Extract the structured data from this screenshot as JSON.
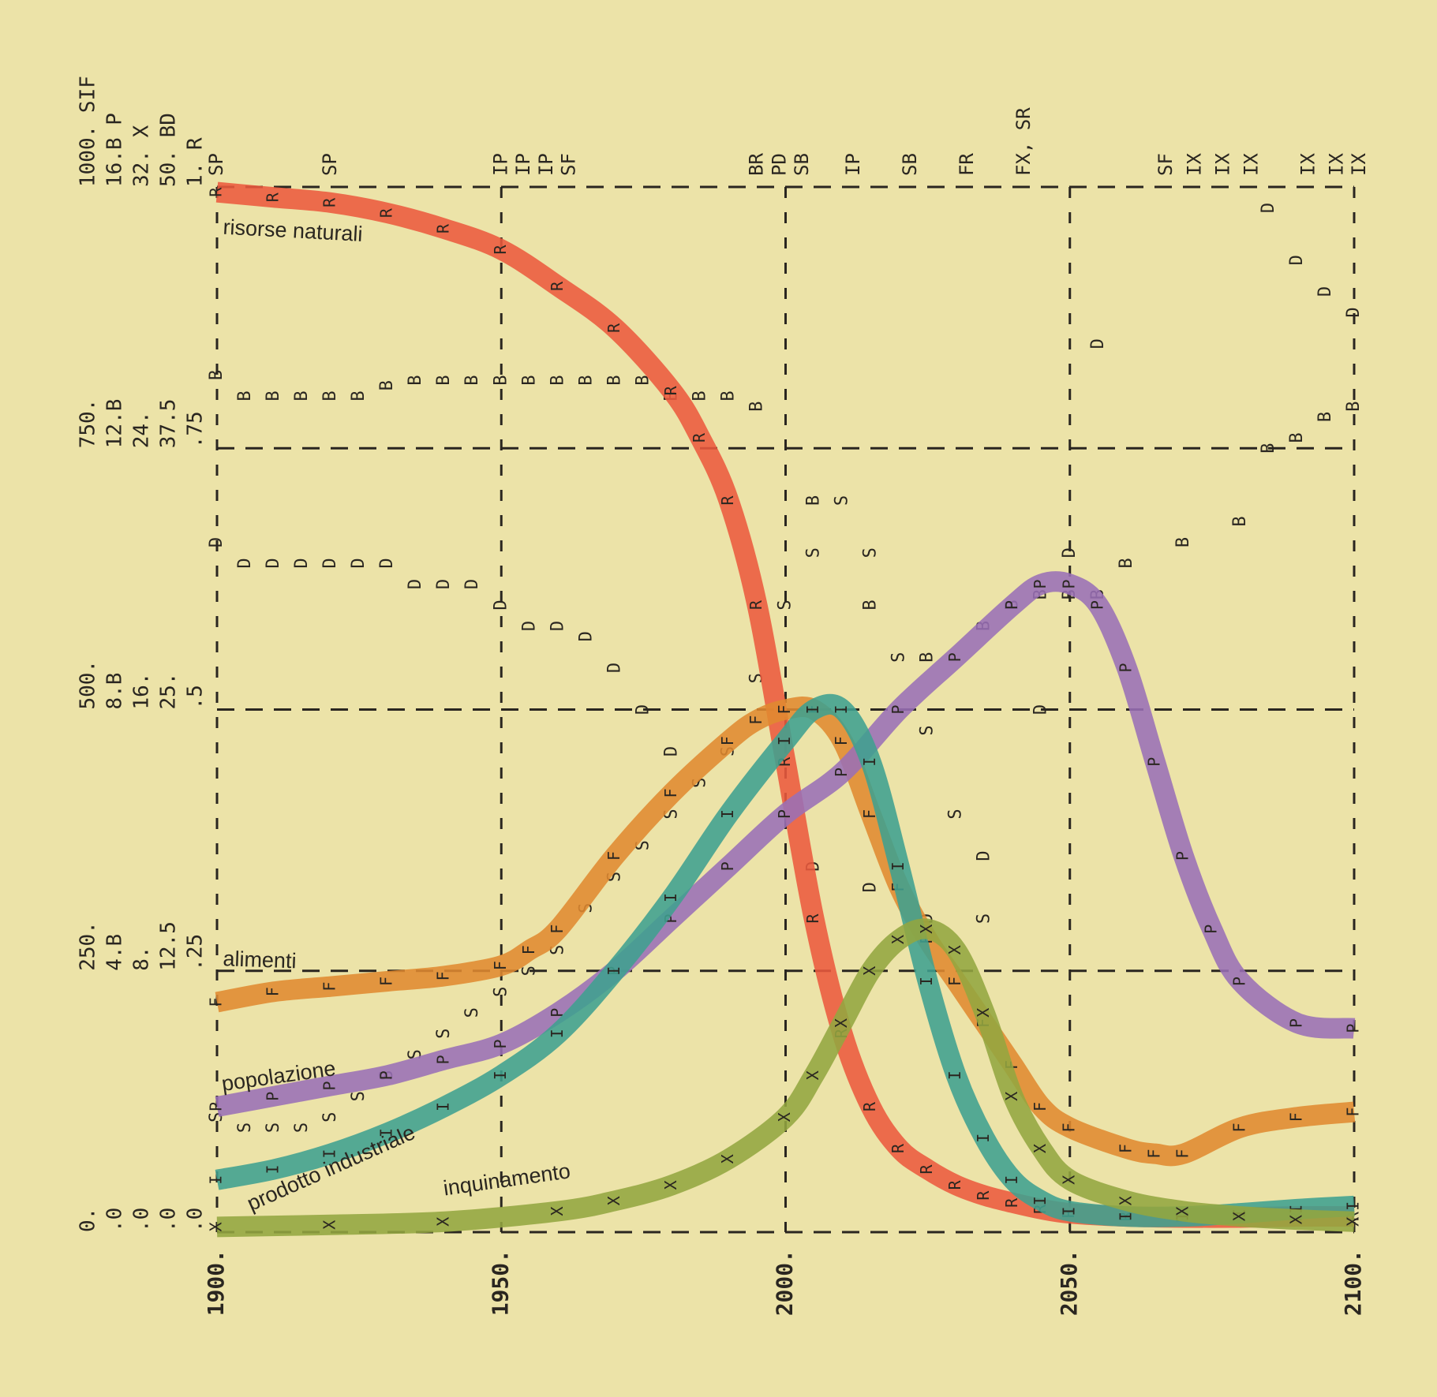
{
  "chart_data": {
    "type": "line",
    "x_ticks": [
      "1900.",
      "1950.",
      "2000.",
      "2050.",
      "2100."
    ],
    "xlim": [
      1900,
      2100
    ],
    "ylim": [
      0,
      1
    ],
    "y_tick_columns": [
      [
        "0.",
        "250.",
        "500.",
        "750.",
        "1000. SIF"
      ],
      [
        ".0",
        "4.B",
        "8.B",
        "12.B",
        "16.B P"
      ],
      [
        ".0",
        "8.",
        "16.",
        "24.",
        "32. X"
      ],
      [
        ".0",
        "12.5",
        "25.",
        "37.5",
        "50. BD"
      ],
      [
        ".0",
        ".25",
        ".5",
        ".75",
        "1. R"
      ]
    ],
    "top_labels": [
      {
        "x": 1900,
        "t": "SP"
      },
      {
        "x": 1920,
        "t": "SP"
      },
      {
        "x": 1950,
        "t": "IP"
      },
      {
        "x": 1954,
        "t": "IP"
      },
      {
        "x": 1958,
        "t": "IP"
      },
      {
        "x": 1962,
        "t": "SF"
      },
      {
        "x": 1995,
        "t": "BR"
      },
      {
        "x": 1999,
        "t": "PD"
      },
      {
        "x": 2003,
        "t": "SB"
      },
      {
        "x": 2012,
        "t": "IP"
      },
      {
        "x": 2022,
        "t": "SB"
      },
      {
        "x": 2032,
        "t": "FR"
      },
      {
        "x": 2042,
        "t": "FX, SR"
      },
      {
        "x": 2067,
        "t": "SF"
      },
      {
        "x": 2072,
        "t": "IX"
      },
      {
        "x": 2077,
        "t": "IX"
      },
      {
        "x": 2082,
        "t": "IX"
      },
      {
        "x": 2092,
        "t": "IX"
      },
      {
        "x": 2097,
        "t": "IX"
      },
      {
        "x": 2101,
        "t": "IX"
      }
    ],
    "series": [
      {
        "name": "risorse naturali",
        "color": "#ec5a3e",
        "x": [
          1900,
          1910,
          1920,
          1930,
          1940,
          1950,
          1960,
          1970,
          1980,
          1985,
          1990,
          1995,
          2000,
          2005,
          2010,
          2015,
          2020,
          2025,
          2030,
          2035,
          2040,
          2045,
          2050,
          2060,
          2070,
          2080,
          2090,
          2100
        ],
        "y": [
          0.995,
          0.99,
          0.985,
          0.975,
          0.96,
          0.94,
          0.905,
          0.865,
          0.805,
          0.76,
          0.7,
          0.6,
          0.45,
          0.3,
          0.19,
          0.12,
          0.08,
          0.06,
          0.045,
          0.035,
          0.028,
          0.022,
          0.018,
          0.015,
          0.014,
          0.014,
          0.015,
          0.015
        ]
      },
      {
        "name": "alimenti",
        "color": "#e08a30",
        "x": [
          1900,
          1910,
          1920,
          1930,
          1940,
          1950,
          1955,
          1960,
          1970,
          1980,
          1990,
          1995,
          2000,
          2005,
          2010,
          2015,
          2020,
          2025,
          2030,
          2035,
          2040,
          2045,
          2050,
          2060,
          2065,
          2070,
          2080,
          2090,
          2100
        ],
        "y": [
          0.22,
          0.23,
          0.235,
          0.24,
          0.245,
          0.255,
          0.27,
          0.29,
          0.36,
          0.42,
          0.47,
          0.49,
          0.5,
          0.5,
          0.47,
          0.4,
          0.33,
          0.28,
          0.24,
          0.2,
          0.16,
          0.12,
          0.1,
          0.08,
          0.075,
          0.075,
          0.1,
          0.11,
          0.115
        ]
      },
      {
        "name": "popolazione",
        "color": "#9a6fb6",
        "x": [
          1900,
          1910,
          1920,
          1930,
          1940,
          1950,
          1960,
          1970,
          1980,
          1990,
          2000,
          2010,
          2020,
          2030,
          2040,
          2045,
          2050,
          2055,
          2060,
          2065,
          2070,
          2075,
          2080,
          2090,
          2100
        ],
        "y": [
          0.12,
          0.13,
          0.14,
          0.15,
          0.165,
          0.18,
          0.21,
          0.25,
          0.3,
          0.35,
          0.4,
          0.44,
          0.5,
          0.55,
          0.6,
          0.62,
          0.62,
          0.6,
          0.54,
          0.45,
          0.36,
          0.29,
          0.24,
          0.2,
          0.195
        ]
      },
      {
        "name": "prodotto industriale",
        "color": "#3fa090",
        "x": [
          1900,
          1910,
          1920,
          1930,
          1940,
          1950,
          1960,
          1970,
          1980,
          1990,
          2000,
          2005,
          2010,
          2015,
          2020,
          2025,
          2030,
          2035,
          2040,
          2045,
          2050,
          2060,
          2070,
          2080,
          2090,
          2100
        ],
        "y": [
          0.05,
          0.06,
          0.075,
          0.095,
          0.12,
          0.15,
          0.19,
          0.25,
          0.32,
          0.4,
          0.47,
          0.5,
          0.5,
          0.45,
          0.35,
          0.24,
          0.15,
          0.09,
          0.05,
          0.03,
          0.02,
          0.015,
          0.015,
          0.018,
          0.022,
          0.025
        ]
      },
      {
        "name": "inquinamento",
        "color": "#93a640",
        "x": [
          1900,
          1920,
          1940,
          1960,
          1970,
          1980,
          1990,
          2000,
          2005,
          2010,
          2015,
          2020,
          2025,
          2030,
          2035,
          2040,
          2045,
          2050,
          2060,
          2070,
          2080,
          2090,
          2100
        ],
        "y": [
          0.005,
          0.007,
          0.01,
          0.02,
          0.03,
          0.045,
          0.07,
          0.11,
          0.15,
          0.2,
          0.25,
          0.28,
          0.29,
          0.27,
          0.21,
          0.13,
          0.08,
          0.05,
          0.03,
          0.02,
          0.015,
          0.012,
          0.01
        ]
      }
    ],
    "letter_tracks": [
      {
        "t": "B",
        "x": [
          1900,
          1905,
          1910,
          1915,
          1920,
          1925,
          1930,
          1935,
          1940,
          1945,
          1950,
          1955,
          1960,
          1965,
          1970,
          1975,
          1980,
          1985,
          1990,
          1995
        ],
        "y": [
          0.82,
          0.8,
          0.8,
          0.8,
          0.8,
          0.8,
          0.81,
          0.815,
          0.815,
          0.815,
          0.815,
          0.815,
          0.815,
          0.815,
          0.815,
          0.815,
          0.8,
          0.8,
          0.8,
          0.79
        ]
      },
      {
        "t": "D",
        "x": [
          1900,
          1905,
          1910,
          1915,
          1920,
          1925,
          1930,
          1935,
          1940,
          1945,
          1950,
          1955,
          1960,
          1965,
          1970,
          1975,
          1980
        ],
        "y": [
          0.66,
          0.64,
          0.64,
          0.64,
          0.64,
          0.64,
          0.64,
          0.62,
          0.62,
          0.62,
          0.6,
          0.58,
          0.58,
          0.57,
          0.54,
          0.5,
          0.46
        ]
      },
      {
        "t": "S",
        "x": [
          1900,
          1905,
          1910,
          1915,
          1920,
          1925,
          1930,
          1935,
          1940,
          1945,
          1950,
          1955,
          1960,
          1965,
          1970,
          1975,
          1980,
          1985,
          1990,
          1995,
          2000,
          2005,
          2010,
          2015,
          2020,
          2025,
          2030,
          2035
        ],
        "y": [
          0.11,
          0.1,
          0.1,
          0.1,
          0.11,
          0.13,
          0.15,
          0.17,
          0.19,
          0.21,
          0.23,
          0.25,
          0.27,
          0.31,
          0.34,
          0.37,
          0.4,
          0.43,
          0.46,
          0.53,
          0.6,
          0.65,
          0.7,
          0.65,
          0.55,
          0.48,
          0.4,
          0.3
        ]
      },
      {
        "t": "D",
        "x": [
          2005,
          2015,
          2025,
          2035,
          2045,
          2050,
          2055
        ],
        "y": [
          0.35,
          0.33,
          0.3,
          0.36,
          0.5,
          0.65,
          0.85
        ]
      },
      {
        "t": "B",
        "x": [
          2005,
          2015,
          2025,
          2035,
          2040,
          2045,
          2050,
          2055,
          2060,
          2070,
          2080,
          2085,
          2090,
          2095,
          2100
        ],
        "y": [
          0.7,
          0.6,
          0.55,
          0.58,
          0.6,
          0.61,
          0.61,
          0.61,
          0.64,
          0.66,
          0.68,
          0.75,
          0.76,
          0.78,
          0.79
        ]
      },
      {
        "t": "D",
        "x": [
          2085,
          2090,
          2095,
          2100
        ],
        "y": [
          0.98,
          0.93,
          0.9,
          0.88
        ]
      }
    ],
    "annotations": [
      {
        "text": "risorse naturali",
        "x": 1901,
        "y": 0.955,
        "rot": 3
      },
      {
        "text": "alimenti",
        "x": 1901,
        "y": 0.255,
        "rot": 2
      },
      {
        "text": "popolazione",
        "x": 1901,
        "y": 0.135,
        "rot": -8
      },
      {
        "text": "prodotto industriale",
        "x": 1906,
        "y": 0.02,
        "rot": -24
      },
      {
        "text": "inquinamento",
        "x": 1940,
        "y": 0.035,
        "rot": -8
      }
    ]
  },
  "colors": {
    "paper": "#ece3a8",
    "ink": "#2a2620"
  }
}
